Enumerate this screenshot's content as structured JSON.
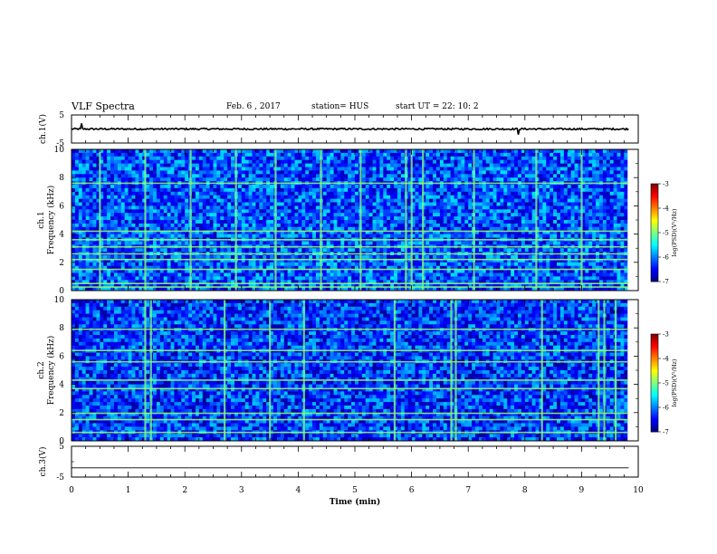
{
  "header": {
    "title": "VLF Spectra",
    "date": "Feb. 6 , 2017",
    "station": "station= HUS",
    "start": "start  UT =   22: 10: 2"
  },
  "chart_data": [
    {
      "type": "line",
      "panel": "ch1-waveform",
      "ylabel": "ch.1(V)",
      "ylim": [
        -5,
        5
      ],
      "yticks": [
        "5",
        "-5"
      ],
      "xlim": [
        0,
        9.83
      ],
      "baseline": 0,
      "noise_amplitude": 0.3,
      "spikes": [
        {
          "x": 0.18,
          "y": 2.0
        },
        {
          "x": 7.88,
          "y": -2.0
        }
      ]
    },
    {
      "type": "heatmap",
      "panel": "ch1-spectrogram",
      "ylabel": "ch.1\nFrequency (kHz)",
      "ylim": [
        0,
        10
      ],
      "yticks": [
        "0",
        "2",
        "4",
        "6",
        "8",
        "10"
      ],
      "xlim": [
        0,
        9.83
      ],
      "colorbar": {
        "label": "log(PSD)(V²/Hz)",
        "range": [
          -7,
          -3
        ],
        "ticks": [
          "-3",
          "-4",
          "-5",
          "-6",
          "-7"
        ]
      },
      "background_level": -6.2,
      "horizontal_lines_khz": [
        0.25,
        0.5,
        1.5,
        2.2,
        2.6,
        3.1,
        3.6,
        4.2,
        7.6
      ],
      "vertical_bursts_min": [
        0.5,
        1.3,
        2.1,
        2.9,
        3.6,
        4.4,
        5.1,
        5.9,
        6.0,
        6.2,
        7.1,
        8.2,
        9.0
      ]
    },
    {
      "type": "heatmap",
      "panel": "ch2-spectrogram",
      "ylabel": "ch.2\nFrequency (kHz)",
      "ylim": [
        0,
        10
      ],
      "yticks": [
        "0",
        "2",
        "4",
        "6",
        "8",
        "10"
      ],
      "xlim": [
        0,
        9.83
      ],
      "colorbar": {
        "label": "log(PSD)(V²/Hz)",
        "range": [
          -7,
          -3
        ],
        "ticks": [
          "-3",
          "-4",
          "-5",
          "-6",
          "-7"
        ]
      },
      "background_level": -6.3,
      "horizontal_lines_khz": [
        0.6,
        1.5,
        1.95,
        3.7,
        4.3,
        5.6,
        6.4,
        7.9
      ],
      "vertical_bursts_min": [
        1.3,
        1.4,
        2.7,
        3.5,
        4.1,
        5.7,
        6.7,
        6.78,
        8.3,
        9.3,
        9.4,
        9.6
      ]
    },
    {
      "type": "line",
      "panel": "ch3-waveform",
      "ylabel": "ch.3(V)",
      "ylim": [
        -5,
        5
      ],
      "yticks": [
        "5",
        "-5"
      ],
      "xlim": [
        0,
        9.83
      ],
      "baseline": -2
    }
  ],
  "xaxis": {
    "label": "Time (min)",
    "ticks": [
      "0",
      "1",
      "2",
      "3",
      "4",
      "5",
      "6",
      "7",
      "8",
      "9",
      "10"
    ],
    "range": [
      0,
      10
    ]
  },
  "colors": {
    "waveform": "#000000",
    "colormap": [
      "#00007f",
      "#0000ff",
      "#0080ff",
      "#00ffff",
      "#7fff7f",
      "#ffff00",
      "#ff8000",
      "#ff0000",
      "#7f0000"
    ]
  }
}
